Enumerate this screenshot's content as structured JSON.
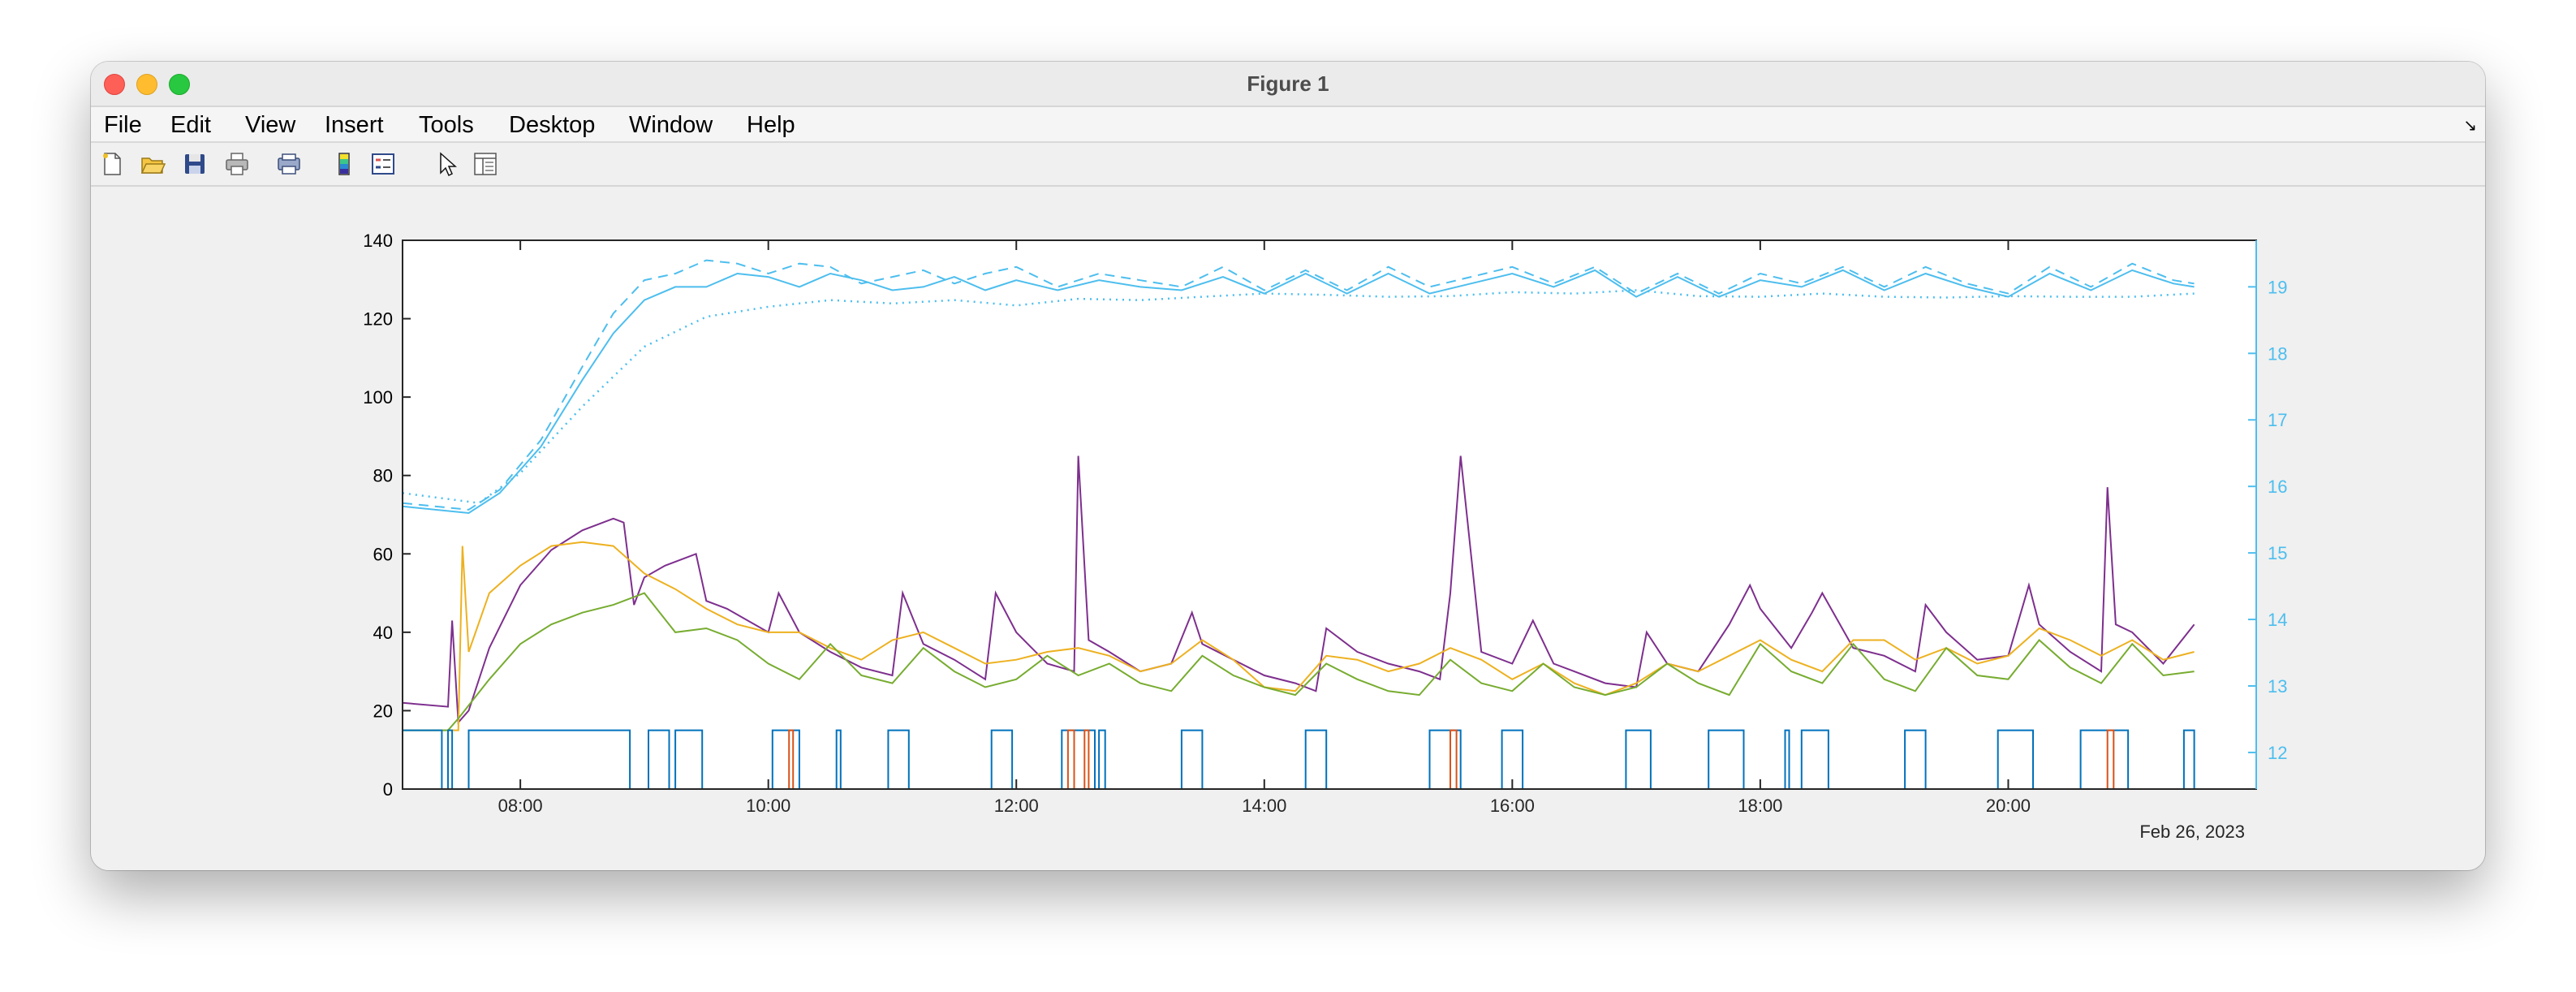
{
  "window": {
    "title": "Figure 1"
  },
  "menu": [
    "File",
    "Edit",
    "View",
    "Insert",
    "Tools",
    "Desktop",
    "Window",
    "Help"
  ],
  "toolbar": [
    "new-figure-icon",
    "open-file-icon",
    "save-icon",
    "print-icon",
    "print-preview-icon",
    "colorbar-icon",
    "legend-icon",
    "pointer-icon",
    "property-inspector-icon"
  ],
  "chart_data": {
    "type": "line",
    "title": "",
    "xlabel": "",
    "ylabel": "",
    "date_label": "Feb 26, 2023",
    "x_ticks": [
      "08:00",
      "10:00",
      "12:00",
      "14:00",
      "16:00",
      "18:00",
      "20:00"
    ],
    "xlim": [
      "07:03",
      "22:00"
    ],
    "ylim_left": [
      0,
      140
    ],
    "yticks_left": [
      0,
      20,
      40,
      60,
      80,
      100,
      120,
      140
    ],
    "ylim_right": [
      11.45,
      19.7
    ],
    "yticks_right": [
      12,
      13,
      14,
      15,
      16,
      17,
      18,
      19
    ],
    "grid": false,
    "colors": {
      "axis_left": "#000000",
      "axis_right": "#4DBEEE",
      "purple": "#7E2F8E",
      "orange": "#EDB120",
      "green": "#77AC30",
      "blue": "#0072BD",
      "red": "#D95319",
      "cyan": "#4DBEEE"
    },
    "series": [
      {
        "axis": "right",
        "style": "solid",
        "color": "#4DBEEE",
        "x": [
          "07:03",
          "07:35",
          "07:50",
          "08:10",
          "08:30",
          "08:45",
          "09:00",
          "09:15",
          "09:30",
          "09:45",
          "10:00",
          "10:15",
          "10:30",
          "10:45",
          "11:00",
          "11:15",
          "11:30",
          "11:45",
          "12:00",
          "12:20",
          "12:40",
          "13:00",
          "13:20",
          "13:40",
          "14:00",
          "14:20",
          "14:40",
          "15:00",
          "15:20",
          "15:40",
          "16:00",
          "16:20",
          "16:40",
          "17:00",
          "17:20",
          "17:40",
          "18:00",
          "18:20",
          "18:40",
          "19:00",
          "19:20",
          "19:40",
          "20:00",
          "20:20",
          "20:40",
          "21:00",
          "21:20",
          "21:30"
        ],
        "y": [
          15.7,
          15.6,
          15.9,
          16.6,
          17.6,
          18.3,
          18.8,
          19.0,
          19.0,
          19.2,
          19.15,
          19.0,
          19.2,
          19.1,
          18.95,
          19.0,
          19.15,
          18.95,
          19.1,
          18.95,
          19.1,
          19.0,
          18.95,
          19.15,
          18.9,
          19.2,
          18.9,
          19.2,
          18.9,
          19.05,
          19.2,
          19.0,
          19.25,
          18.85,
          19.15,
          18.85,
          19.1,
          19.0,
          19.25,
          18.95,
          19.2,
          19.0,
          18.85,
          19.2,
          18.95,
          19.25,
          19.05,
          19.0
        ]
      },
      {
        "axis": "right",
        "style": "dashed",
        "color": "#4DBEEE",
        "x": [
          "07:03",
          "07:35",
          "07:50",
          "08:10",
          "08:30",
          "08:45",
          "09:00",
          "09:15",
          "09:30",
          "09:45",
          "10:00",
          "10:15",
          "10:30",
          "10:45",
          "11:00",
          "11:15",
          "11:30",
          "11:45",
          "12:00",
          "12:20",
          "12:40",
          "13:00",
          "13:20",
          "13:40",
          "14:00",
          "14:20",
          "14:40",
          "15:00",
          "15:20",
          "15:40",
          "16:00",
          "16:20",
          "16:40",
          "17:00",
          "17:20",
          "17:40",
          "18:00",
          "18:20",
          "18:40",
          "19:00",
          "19:20",
          "19:40",
          "20:00",
          "20:20",
          "20:40",
          "21:00",
          "21:20",
          "21:30"
        ],
        "y": [
          15.75,
          15.65,
          15.95,
          16.7,
          17.8,
          18.6,
          19.1,
          19.2,
          19.4,
          19.35,
          19.2,
          19.35,
          19.3,
          19.05,
          19.15,
          19.25,
          19.05,
          19.2,
          19.3,
          19.0,
          19.2,
          19.1,
          19.0,
          19.3,
          18.95,
          19.25,
          18.95,
          19.3,
          19.0,
          19.15,
          19.3,
          19.05,
          19.3,
          18.9,
          19.2,
          18.9,
          19.2,
          19.05,
          19.3,
          19.0,
          19.3,
          19.05,
          18.9,
          19.3,
          19.0,
          19.35,
          19.1,
          19.05
        ]
      },
      {
        "axis": "right",
        "style": "dotted",
        "color": "#4DBEEE",
        "x": [
          "07:03",
          "07:40",
          "08:00",
          "08:30",
          "09:00",
          "09:30",
          "10:00",
          "10:30",
          "11:00",
          "11:30",
          "12:00",
          "12:30",
          "13:00",
          "13:30",
          "14:00",
          "14:30",
          "15:00",
          "15:30",
          "16:00",
          "16:30",
          "17:00",
          "17:30",
          "18:00",
          "18:30",
          "19:00",
          "19:30",
          "20:00",
          "20:30",
          "21:00",
          "21:30"
        ],
        "y": [
          15.9,
          15.75,
          16.2,
          17.2,
          18.1,
          18.55,
          18.7,
          18.8,
          18.75,
          18.8,
          18.72,
          18.82,
          18.8,
          18.85,
          18.9,
          18.88,
          18.85,
          18.86,
          18.92,
          18.9,
          18.95,
          18.86,
          18.85,
          18.9,
          18.85,
          18.84,
          18.86,
          18.85,
          18.85,
          18.9
        ]
      },
      {
        "axis": "left",
        "style": "solid",
        "color": "#7E2F8E",
        "x": [
          "07:03",
          "07:25",
          "07:27",
          "07:30",
          "07:35",
          "07:45",
          "08:00",
          "08:15",
          "08:30",
          "08:45",
          "08:50",
          "08:55",
          "09:00",
          "09:10",
          "09:25",
          "09:30",
          "09:40",
          "10:00",
          "10:05",
          "10:15",
          "10:30",
          "10:45",
          "11:00",
          "11:05",
          "11:15",
          "11:30",
          "11:45",
          "11:50",
          "12:00",
          "12:15",
          "12:28",
          "12:30",
          "12:35",
          "12:45",
          "13:00",
          "13:15",
          "13:25",
          "13:30",
          "13:45",
          "14:00",
          "14:15",
          "14:25",
          "14:30",
          "14:45",
          "15:00",
          "15:15",
          "15:25",
          "15:30",
          "15:35",
          "15:45",
          "16:00",
          "16:10",
          "16:20",
          "16:30",
          "16:45",
          "17:00",
          "17:05",
          "17:15",
          "17:30",
          "17:45",
          "17:55",
          "18:00",
          "18:15",
          "18:25",
          "18:30",
          "18:45",
          "19:00",
          "19:15",
          "19:20",
          "19:30",
          "19:45",
          "20:00",
          "20:10",
          "20:15",
          "20:30",
          "20:45",
          "20:48",
          "20:52",
          "21:00",
          "21:15",
          "21:30"
        ],
        "y": [
          22,
          21,
          43,
          17,
          20,
          36,
          52,
          61,
          66,
          69,
          68,
          47,
          54,
          57,
          60,
          48,
          46,
          40,
          50,
          40,
          35,
          31,
          29,
          50,
          37,
          33,
          28,
          50,
          40,
          32,
          30,
          85,
          38,
          35,
          30,
          32,
          45,
          37,
          33,
          29,
          27,
          25,
          41,
          35,
          32,
          30,
          28,
          50,
          85,
          35,
          32,
          43,
          32,
          30,
          27,
          26,
          40,
          32,
          30,
          42,
          52,
          46,
          36,
          45,
          50,
          36,
          34,
          30,
          47,
          40,
          33,
          34,
          52,
          42,
          35,
          30,
          77,
          42,
          40,
          32,
          42
        ]
      },
      {
        "axis": "left",
        "style": "solid",
        "color": "#EDB120",
        "x": [
          "07:03",
          "07:30",
          "07:32",
          "07:35",
          "07:37",
          "07:45",
          "08:00",
          "08:15",
          "08:30",
          "08:45",
          "09:00",
          "09:15",
          "09:30",
          "09:45",
          "10:00",
          "10:15",
          "10:30",
          "10:45",
          "11:00",
          "11:15",
          "11:30",
          "11:45",
          "12:00",
          "12:15",
          "12:30",
          "12:45",
          "13:00",
          "13:15",
          "13:30",
          "13:45",
          "14:00",
          "14:15",
          "14:30",
          "14:45",
          "15:00",
          "15:15",
          "15:30",
          "15:45",
          "16:00",
          "16:15",
          "16:30",
          "16:45",
          "17:00",
          "17:15",
          "17:30",
          "17:45",
          "18:00",
          "18:15",
          "18:30",
          "18:45",
          "19:00",
          "19:15",
          "19:30",
          "19:45",
          "20:00",
          "20:15",
          "20:30",
          "20:45",
          "21:00",
          "21:15",
          "21:30"
        ],
        "y": [
          15,
          15,
          62,
          35,
          38,
          50,
          57,
          62,
          63,
          62,
          55,
          51,
          46,
          42,
          40,
          40,
          36,
          33,
          38,
          40,
          36,
          32,
          33,
          35,
          36,
          34,
          30,
          32,
          38,
          33,
          26,
          25,
          34,
          33,
          30,
          32,
          36,
          33,
          28,
          32,
          27,
          24,
          27,
          32,
          30,
          34,
          38,
          33,
          30,
          38,
          38,
          33,
          36,
          32,
          34,
          41,
          38,
          34,
          38,
          33,
          35
        ]
      },
      {
        "axis": "left",
        "style": "solid",
        "color": "#77AC30",
        "x": [
          "07:03",
          "07:25",
          "07:30",
          "07:45",
          "08:00",
          "08:15",
          "08:30",
          "08:45",
          "09:00",
          "09:15",
          "09:30",
          "09:45",
          "10:00",
          "10:15",
          "10:30",
          "10:45",
          "11:00",
          "11:15",
          "11:30",
          "11:45",
          "12:00",
          "12:15",
          "12:30",
          "12:45",
          "13:00",
          "13:15",
          "13:30",
          "13:45",
          "14:00",
          "14:15",
          "14:30",
          "14:45",
          "15:00",
          "15:15",
          "15:30",
          "15:45",
          "16:00",
          "16:15",
          "16:30",
          "16:45",
          "17:00",
          "17:15",
          "17:30",
          "17:45",
          "18:00",
          "18:15",
          "18:30",
          "18:45",
          "19:00",
          "19:15",
          "19:30",
          "19:45",
          "20:00",
          "20:15",
          "20:30",
          "20:45",
          "21:00",
          "21:15",
          "21:30"
        ],
        "y": [
          15,
          15,
          18,
          28,
          37,
          42,
          45,
          47,
          50,
          40,
          41,
          38,
          32,
          28,
          37,
          29,
          27,
          36,
          30,
          26,
          28,
          34,
          29,
          32,
          27,
          25,
          34,
          29,
          26,
          24,
          32,
          28,
          25,
          24,
          33,
          27,
          25,
          32,
          26,
          24,
          26,
          32,
          27,
          24,
          37,
          30,
          27,
          37,
          28,
          25,
          36,
          29,
          28,
          38,
          31,
          27,
          37,
          29,
          30
        ]
      },
      {
        "axis": "left",
        "style": "step",
        "color": "#0072BD",
        "intervals": [
          [
            "07:03",
            "07:22"
          ],
          [
            "07:25",
            "07:27"
          ],
          [
            "07:35",
            "08:53"
          ],
          [
            "09:02",
            "09:12"
          ],
          [
            "09:15",
            "09:28"
          ],
          [
            "10:02",
            "10:15"
          ],
          [
            "10:33",
            "10:35"
          ],
          [
            "10:58",
            "11:08"
          ],
          [
            "11:48",
            "11:58"
          ],
          [
            "12:22",
            "12:38"
          ],
          [
            "12:40",
            "12:43"
          ],
          [
            "13:20",
            "13:30"
          ],
          [
            "14:20",
            "14:30"
          ],
          [
            "15:20",
            "15:35"
          ],
          [
            "15:55",
            "16:05"
          ],
          [
            "16:55",
            "17:07"
          ],
          [
            "17:35",
            "17:52"
          ],
          [
            "18:12",
            "18:14"
          ],
          [
            "18:20",
            "18:33"
          ],
          [
            "19:10",
            "19:20"
          ],
          [
            "19:55",
            "20:12"
          ],
          [
            "20:35",
            "20:58"
          ],
          [
            "21:25",
            "21:30"
          ]
        ],
        "level": 15
      },
      {
        "axis": "left",
        "style": "step",
        "color": "#D95319",
        "intervals": [
          [
            "10:10",
            "10:12"
          ],
          [
            "12:25",
            "12:28"
          ],
          [
            "12:33",
            "12:35"
          ],
          [
            "15:30",
            "15:33"
          ],
          [
            "20:48",
            "20:51"
          ]
        ],
        "level": 15
      }
    ]
  }
}
